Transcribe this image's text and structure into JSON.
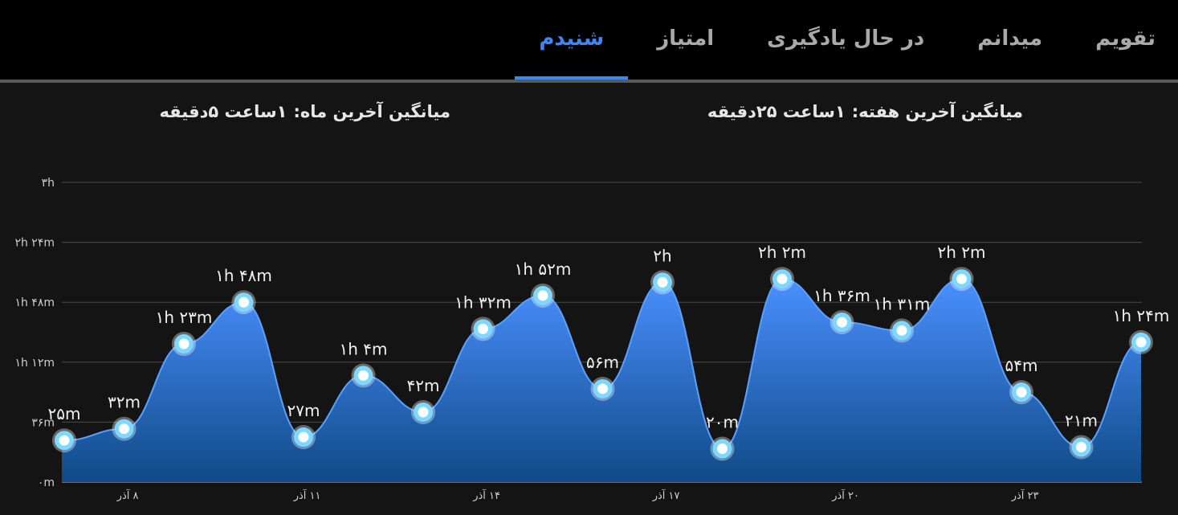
{
  "tabs": [
    {
      "label": "تقویم",
      "active": false
    },
    {
      "label": "میدانم",
      "active": false
    },
    {
      "label": "در حال یادگیری",
      "active": false
    },
    {
      "label": "امتیاز",
      "active": false
    },
    {
      "label": "شنیدم",
      "active": true
    }
  ],
  "stats": {
    "week_label": "میانگین آخرین هفته:",
    "week_value": "۱ساعت  ۲۵دقیقه",
    "month_label": "میانگین آخرین ماه:",
    "month_value": "۱ساعت  ۵دقیقه"
  },
  "colors": {
    "accent": "#3f86f5",
    "area_top": "#4a90ff",
    "area_bottom": "#0f4a86",
    "marker_ring": "#7fd8ff"
  },
  "chart_data": {
    "type": "area",
    "ylim": [
      0,
      180
    ],
    "y_tick_values": [
      0,
      36,
      72,
      108,
      144,
      180
    ],
    "y_tick_labels": [
      "۰m",
      "۳۶m",
      "۱h ۱۲m",
      "۱h ۴۸m",
      "۲h ۲۴m",
      "۳h"
    ],
    "x_tick_labels": [
      {
        "index": 1.33,
        "label": "۸ آذر"
      },
      {
        "index": 4.33,
        "label": "۱۱ آذر"
      },
      {
        "index": 7.33,
        "label": "۱۴ آذر"
      },
      {
        "index": 10.33,
        "label": "۱۷ آذر"
      },
      {
        "index": 13.33,
        "label": "۲۰ آذر"
      },
      {
        "index": 16.33,
        "label": "۲۳ آذر"
      }
    ],
    "grid": true,
    "series": [
      {
        "values": [
          25,
          32,
          83,
          108,
          27,
          64,
          42,
          92,
          112,
          56,
          120,
          20,
          122,
          96,
          91,
          122,
          54,
          21,
          84
        ],
        "labels": [
          "۲۵m",
          "۳۲m",
          "۱h ۲۳m",
          "۱h ۴۸m",
          "۲۷m",
          "۱h ۴m",
          "۴۲m",
          "۱h ۳۲m",
          "۱h ۵۲m",
          "۵۶m",
          "۲h",
          "۲۰m",
          "۲h ۲m",
          "۱h ۳۶m",
          "۱h ۳۱m",
          "۲h ۲m",
          "۵۴m",
          "۲۱m",
          "۱h ۲۴m"
        ]
      }
    ]
  }
}
